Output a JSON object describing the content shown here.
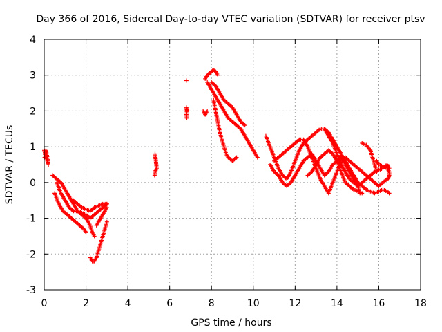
{
  "chart_data": {
    "type": "scatter",
    "title": "Day 366 of 2016, Sidereal Day-to-day VTEC variation (SDTVAR) for receiver ptsv",
    "xlabel": "GPS time / hours",
    "ylabel": "SDTVAR / TECUs",
    "xlim": [
      0,
      18
    ],
    "ylim": [
      -3,
      4
    ],
    "x_ticks": [
      0,
      2,
      4,
      6,
      8,
      10,
      12,
      14,
      16,
      18
    ],
    "y_ticks": [
      -3,
      -2,
      -1,
      0,
      1,
      2,
      3,
      4
    ],
    "x_tick_labels": [
      "0",
      "2",
      "4",
      "6",
      "8",
      "10",
      "12",
      "14",
      "16",
      "18"
    ],
    "y_tick_labels": [
      "-3",
      "-2",
      "-1",
      "0",
      "1",
      "2",
      "3",
      "4"
    ],
    "grid": true,
    "marker": "+",
    "marker_color": "#ff0000",
    "series": [
      {
        "name": "SDTVAR",
        "tracks": [
          [
            [
              0.0,
              0.9
            ],
            [
              0.05,
              0.8
            ],
            [
              0.1,
              0.7
            ],
            [
              0.15,
              0.6
            ],
            [
              0.2,
              0.5
            ]
          ],
          [
            [
              0.02,
              0.7
            ],
            [
              0.08,
              0.9
            ],
            [
              0.12,
              0.8
            ],
            [
              0.18,
              0.6
            ]
          ],
          [
            [
              0.4,
              0.2
            ],
            [
              0.6,
              0.1
            ],
            [
              0.8,
              0.0
            ],
            [
              1.0,
              -0.2
            ],
            [
              1.2,
              -0.4
            ],
            [
              1.4,
              -0.6
            ],
            [
              1.6,
              -0.8
            ],
            [
              1.8,
              -0.9
            ],
            [
              2.0,
              -1.0
            ],
            [
              2.2,
              -1.2
            ],
            [
              2.3,
              -1.4
            ],
            [
              2.4,
              -1.5
            ]
          ],
          [
            [
              0.5,
              -0.3
            ],
            [
              0.7,
              -0.6
            ],
            [
              0.9,
              -0.8
            ],
            [
              1.1,
              -0.9
            ],
            [
              1.3,
              -1.0
            ],
            [
              1.5,
              -1.1
            ],
            [
              1.7,
              -1.2
            ],
            [
              1.9,
              -1.3
            ],
            [
              2.0,
              -1.4
            ]
          ],
          [
            [
              0.6,
              0.0
            ],
            [
              0.8,
              -0.3
            ],
            [
              1.0,
              -0.5
            ],
            [
              1.2,
              -0.7
            ],
            [
              1.4,
              -0.8
            ],
            [
              1.6,
              -0.8
            ],
            [
              1.8,
              -0.85
            ],
            [
              2.0,
              -0.9
            ],
            [
              2.2,
              -1.0
            ],
            [
              2.4,
              -0.9
            ],
            [
              2.6,
              -0.8
            ],
            [
              2.8,
              -0.7
            ],
            [
              3.0,
              -0.6
            ]
          ],
          [
            [
              1.4,
              -0.5
            ],
            [
              1.6,
              -0.6
            ],
            [
              1.8,
              -0.7
            ],
            [
              2.0,
              -0.75
            ],
            [
              2.2,
              -0.8
            ],
            [
              2.4,
              -0.7
            ],
            [
              2.6,
              -0.65
            ],
            [
              2.8,
              -0.6
            ],
            [
              3.0,
              -0.6
            ]
          ],
          [
            [
              2.2,
              -2.1
            ],
            [
              2.3,
              -2.2
            ],
            [
              2.4,
              -2.2
            ],
            [
              2.5,
              -2.1
            ],
            [
              2.6,
              -1.9
            ],
            [
              2.7,
              -1.7
            ],
            [
              2.8,
              -1.5
            ],
            [
              2.9,
              -1.3
            ],
            [
              3.0,
              -1.1
            ]
          ],
          [
            [
              2.5,
              -1.2
            ],
            [
              2.6,
              -1.1
            ],
            [
              2.7,
              -1.0
            ],
            [
              2.8,
              -0.9
            ],
            [
              2.9,
              -0.8
            ],
            [
              3.0,
              -0.7
            ]
          ],
          [
            [
              5.3,
              0.8
            ],
            [
              5.32,
              0.7
            ],
            [
              5.34,
              0.6
            ],
            [
              5.36,
              0.5
            ],
            [
              5.38,
              0.4
            ],
            [
              5.3,
              0.3
            ],
            [
              5.28,
              0.2
            ]
          ],
          [
            [
              6.8,
              2.85
            ]
          ],
          [
            [
              6.8,
              2.1
            ],
            [
              6.82,
              2.0
            ],
            [
              6.84,
              2.05
            ],
            [
              6.8,
              1.9
            ],
            [
              6.82,
              1.8
            ]
          ],
          [
            [
              7.7,
              2.9
            ],
            [
              7.8,
              3.0
            ],
            [
              7.9,
              3.05
            ],
            [
              8.0,
              3.1
            ],
            [
              8.1,
              3.15
            ],
            [
              8.2,
              3.1
            ],
            [
              8.3,
              3.0
            ]
          ],
          [
            [
              7.8,
              2.8
            ],
            [
              8.0,
              2.6
            ],
            [
              8.2,
              2.4
            ],
            [
              8.4,
              2.2
            ],
            [
              8.6,
              2.0
            ],
            [
              8.8,
              1.8
            ],
            [
              9.0,
              1.7
            ],
            [
              9.2,
              1.6
            ],
            [
              9.4,
              1.5
            ],
            [
              9.6,
              1.3
            ],
            [
              9.8,
              1.1
            ],
            [
              10.0,
              0.9
            ],
            [
              10.2,
              0.7
            ]
          ],
          [
            [
              8.0,
              2.8
            ],
            [
              8.2,
              2.7
            ],
            [
              8.4,
              2.5
            ],
            [
              8.6,
              2.3
            ],
            [
              8.8,
              2.2
            ],
            [
              9.0,
              2.1
            ],
            [
              9.2,
              1.9
            ],
            [
              9.4,
              1.7
            ],
            [
              9.6,
              1.6
            ]
          ],
          [
            [
              8.1,
              2.3
            ],
            [
              8.2,
              2.0
            ],
            [
              8.3,
              1.7
            ],
            [
              8.4,
              1.4
            ],
            [
              8.5,
              1.2
            ],
            [
              8.6,
              1.0
            ],
            [
              8.7,
              0.8
            ],
            [
              8.8,
              0.7
            ],
            [
              9.0,
              0.6
            ],
            [
              9.2,
              0.7
            ]
          ],
          [
            [
              7.6,
              2.0
            ],
            [
              7.7,
              1.9
            ],
            [
              7.8,
              2.0
            ]
          ],
          [
            [
              10.6,
              1.3
            ],
            [
              10.8,
              1.0
            ],
            [
              11.0,
              0.7
            ],
            [
              11.2,
              0.4
            ],
            [
              11.4,
              0.2
            ],
            [
              11.6,
              0.1
            ],
            [
              11.8,
              0.3
            ],
            [
              12.0,
              0.6
            ],
            [
              12.2,
              0.9
            ],
            [
              12.4,
              1.1
            ],
            [
              12.6,
              1.2
            ],
            [
              12.8,
              1.3
            ],
            [
              13.0,
              1.4
            ],
            [
              13.2,
              1.5
            ],
            [
              13.4,
              1.5
            ],
            [
              13.6,
              1.3
            ],
            [
              13.8,
              1.1
            ],
            [
              14.0,
              0.8
            ],
            [
              14.2,
              0.5
            ],
            [
              14.4,
              0.3
            ],
            [
              14.6,
              0.1
            ],
            [
              14.8,
              0.0
            ],
            [
              15.0,
              -0.1
            ],
            [
              15.2,
              0.0
            ],
            [
              15.4,
              0.1
            ],
            [
              15.6,
              0.2
            ],
            [
              15.8,
              0.3
            ],
            [
              16.0,
              0.35
            ],
            [
              16.2,
              0.4
            ],
            [
              16.4,
              0.5
            ],
            [
              16.5,
              0.4
            ]
          ],
          [
            [
              10.8,
              0.5
            ],
            [
              11.0,
              0.3
            ],
            [
              11.2,
              0.2
            ],
            [
              11.4,
              0.0
            ],
            [
              11.6,
              -0.1
            ],
            [
              11.8,
              0.0
            ],
            [
              12.0,
              0.2
            ],
            [
              12.2,
              0.4
            ],
            [
              12.4,
              0.6
            ],
            [
              12.6,
              0.7
            ],
            [
              12.8,
              0.8
            ],
            [
              13.0,
              0.6
            ],
            [
              13.2,
              0.4
            ],
            [
              13.4,
              0.2
            ],
            [
              13.6,
              0.3
            ],
            [
              13.8,
              0.5
            ],
            [
              14.0,
              0.6
            ],
            [
              14.2,
              0.7
            ],
            [
              14.4,
              0.6
            ],
            [
              14.6,
              0.4
            ],
            [
              14.8,
              0.2
            ],
            [
              15.0,
              0.0
            ],
            [
              15.2,
              -0.1
            ],
            [
              15.4,
              -0.2
            ],
            [
              15.6,
              -0.25
            ],
            [
              15.8,
              -0.3
            ],
            [
              16.0,
              -0.25
            ],
            [
              16.2,
              -0.2
            ],
            [
              16.4,
              -0.25
            ],
            [
              16.5,
              -0.3
            ]
          ],
          [
            [
              11.0,
              0.6
            ],
            [
              11.2,
              0.7
            ],
            [
              11.4,
              0.8
            ],
            [
              11.6,
              0.9
            ],
            [
              11.8,
              1.0
            ],
            [
              12.0,
              1.1
            ],
            [
              12.2,
              1.2
            ],
            [
              12.4,
              1.2
            ],
            [
              12.6,
              1.0
            ],
            [
              12.8,
              0.7
            ],
            [
              13.0,
              0.4
            ],
            [
              13.2,
              0.1
            ],
            [
              13.4,
              -0.1
            ],
            [
              13.6,
              -0.3
            ],
            [
              13.8,
              0.0
            ],
            [
              14.0,
              0.3
            ],
            [
              14.2,
              0.6
            ],
            [
              14.4,
              0.7
            ],
            [
              14.6,
              0.6
            ],
            [
              14.8,
              0.5
            ],
            [
              15.0,
              0.4
            ],
            [
              15.2,
              0.3
            ],
            [
              15.4,
              0.2
            ],
            [
              15.6,
              0.1
            ],
            [
              15.8,
              0.0
            ],
            [
              16.0,
              -0.1
            ],
            [
              16.2,
              0.0
            ],
            [
              16.4,
              0.1
            ]
          ],
          [
            [
              12.6,
              0.2
            ],
            [
              12.8,
              0.3
            ],
            [
              13.0,
              0.5
            ],
            [
              13.2,
              0.7
            ],
            [
              13.4,
              0.8
            ],
            [
              13.6,
              0.9
            ],
            [
              13.8,
              0.8
            ],
            [
              14.0,
              0.6
            ],
            [
              14.2,
              0.3
            ],
            [
              14.4,
              0.0
            ],
            [
              14.6,
              -0.1
            ],
            [
              14.8,
              -0.2
            ],
            [
              15.0,
              -0.25
            ],
            [
              15.2,
              -0.3
            ]
          ],
          [
            [
              13.4,
              1.5
            ],
            [
              13.6,
              1.4
            ],
            [
              13.8,
              1.2
            ],
            [
              14.0,
              1.0
            ],
            [
              14.2,
              0.8
            ],
            [
              14.4,
              0.5
            ],
            [
              14.6,
              0.3
            ],
            [
              14.8,
              0.1
            ],
            [
              15.0,
              -0.1
            ],
            [
              15.1,
              -0.3
            ]
          ],
          [
            [
              15.2,
              1.1
            ],
            [
              15.4,
              1.05
            ],
            [
              15.6,
              0.9
            ],
            [
              15.7,
              0.7
            ],
            [
              15.8,
              0.5
            ],
            [
              15.9,
              0.3
            ]
          ],
          [
            [
              15.9,
              0.6
            ],
            [
              16.0,
              0.5
            ],
            [
              16.2,
              0.45
            ],
            [
              16.4,
              0.4
            ],
            [
              16.5,
              0.3
            ],
            [
              16.5,
              0.2
            ],
            [
              16.45,
              0.1
            ]
          ]
        ]
      }
    ]
  }
}
